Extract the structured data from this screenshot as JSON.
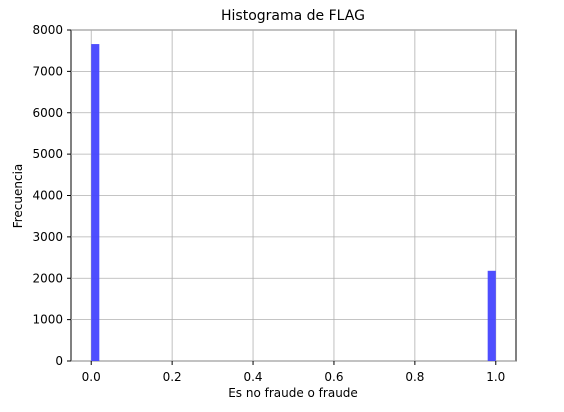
{
  "chart_data": {
    "type": "bar",
    "title": "Histograma de FLAG",
    "xlabel": "Es no fraude o fraude",
    "ylabel": "Frecuencia",
    "x_ticks": [
      "0.0",
      "0.2",
      "0.4",
      "0.6",
      "0.8",
      "1.0"
    ],
    "y_ticks": [
      "0",
      "1000",
      "2000",
      "3000",
      "4000",
      "5000",
      "6000",
      "7000",
      "8000"
    ],
    "xlim": [
      -0.05,
      1.05
    ],
    "ylim": [
      0,
      8000
    ],
    "grid": true,
    "bar_color": "#4444ff",
    "bins": [
      {
        "x_start": 0.0,
        "x_end": 0.02,
        "count": 7660
      },
      {
        "x_start": 0.98,
        "x_end": 1.0,
        "count": 2180
      }
    ]
  }
}
